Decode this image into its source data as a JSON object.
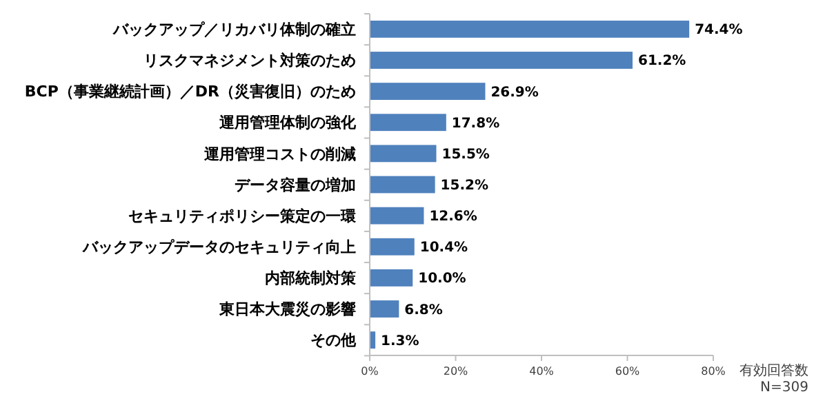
{
  "chart_data": {
    "type": "bar",
    "orientation": "horizontal",
    "categories": [
      "バックアップ／リカバリ体制の確立",
      "リスクマネジメント対策のため",
      "BCP（事業継続計画）／DR（災害復旧）のため",
      "運用管理体制の強化",
      "運用管理コストの削減",
      "データ容量の増加",
      "セキュリティポリシー策定の一環",
      "バックアップデータのセキュリティ向上",
      "内部統制対策",
      "東日本大震災の影響",
      "その他"
    ],
    "values": [
      74.4,
      61.2,
      26.9,
      17.8,
      15.5,
      15.2,
      12.6,
      10.4,
      10.0,
      6.8,
      1.3
    ],
    "value_labels": [
      "74.4%",
      "61.2%",
      "26.9%",
      "17.8%",
      "15.5%",
      "15.2%",
      "12.6%",
      "10.4%",
      "10.0%",
      "6.8%",
      "1.3%"
    ],
    "color": "#4f81bd",
    "xlim": [
      0,
      80
    ],
    "xticks": [
      {
        "value": 0,
        "label": "0%"
      },
      {
        "value": 20,
        "label": "20%"
      },
      {
        "value": 40,
        "label": "40%"
      },
      {
        "value": 60,
        "label": "60%"
      },
      {
        "value": 80,
        "label": "80%"
      }
    ],
    "annotations": [
      "有効回答数",
      "N=309"
    ],
    "grid": false
  }
}
